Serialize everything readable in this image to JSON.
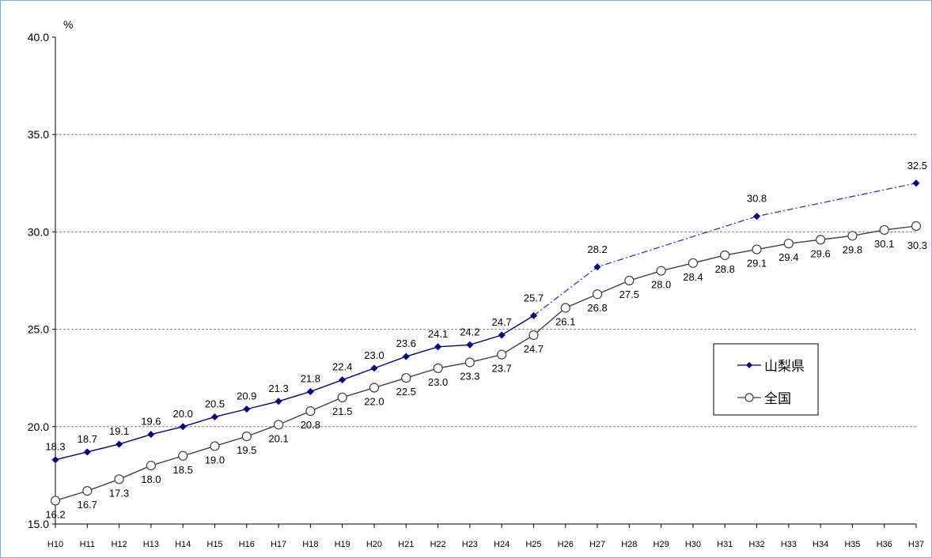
{
  "chart_data": {
    "type": "line",
    "ylabel": "%",
    "ylim": [
      15,
      40
    ],
    "yticks": [
      "15.0",
      "20.0",
      "25.0",
      "30.0",
      "35.0",
      "40.0"
    ],
    "grid": true,
    "legend_position": "right",
    "categories": [
      "H10",
      "H11",
      "H12",
      "H13",
      "H14",
      "H15",
      "H16",
      "H17",
      "H18",
      "H19",
      "H20",
      "H21",
      "H22",
      "H23",
      "H24",
      "H25",
      "H26",
      "H27",
      "H28",
      "H29",
      "H30",
      "H31",
      "H32",
      "H33",
      "H34",
      "H35",
      "H36",
      "H37"
    ],
    "series": [
      {
        "name": "山梨県",
        "color": "#000080",
        "marker": "diamond",
        "values": [
          18.3,
          18.7,
          19.1,
          19.6,
          20.0,
          20.5,
          20.9,
          21.3,
          21.8,
          22.4,
          23.0,
          23.6,
          24.1,
          24.2,
          24.7,
          25.7,
          null,
          28.2,
          null,
          null,
          null,
          null,
          30.8,
          null,
          null,
          null,
          null,
          32.5
        ],
        "labels": [
          "18.3",
          "18.7",
          "19.1",
          "19.6",
          "20.0",
          "20.5",
          "20.9",
          "21.3",
          "21.8",
          "22.4",
          "23.0",
          "23.6",
          "24.1",
          "24.2",
          "24.7",
          "25.7",
          null,
          "28.2",
          null,
          null,
          null,
          null,
          "30.8",
          null,
          null,
          null,
          null,
          "32.5"
        ],
        "projection_from_index": 15
      },
      {
        "name": "全国",
        "color": "#404040",
        "marker": "circle",
        "values": [
          16.2,
          16.7,
          17.3,
          18.0,
          18.5,
          19.0,
          19.5,
          20.1,
          20.8,
          21.5,
          22.0,
          22.5,
          23.0,
          23.3,
          23.7,
          24.7,
          26.1,
          26.8,
          27.5,
          28.0,
          28.4,
          28.8,
          29.1,
          29.4,
          29.6,
          29.8,
          30.1,
          30.3
        ],
        "labels": [
          "16.2",
          "16.7",
          "17.3",
          "18.0",
          "18.5",
          "19.0",
          "19.5",
          "20.1",
          "20.8",
          "21.5",
          "22.0",
          "22.5",
          "23.0",
          "23.3",
          "23.7",
          "24.7",
          "26.1",
          "26.8",
          "27.5",
          "28.0",
          "28.4",
          "28.8",
          "29.1",
          "29.4",
          "29.6",
          "29.8",
          "30.1",
          "30.3"
        ]
      }
    ]
  }
}
